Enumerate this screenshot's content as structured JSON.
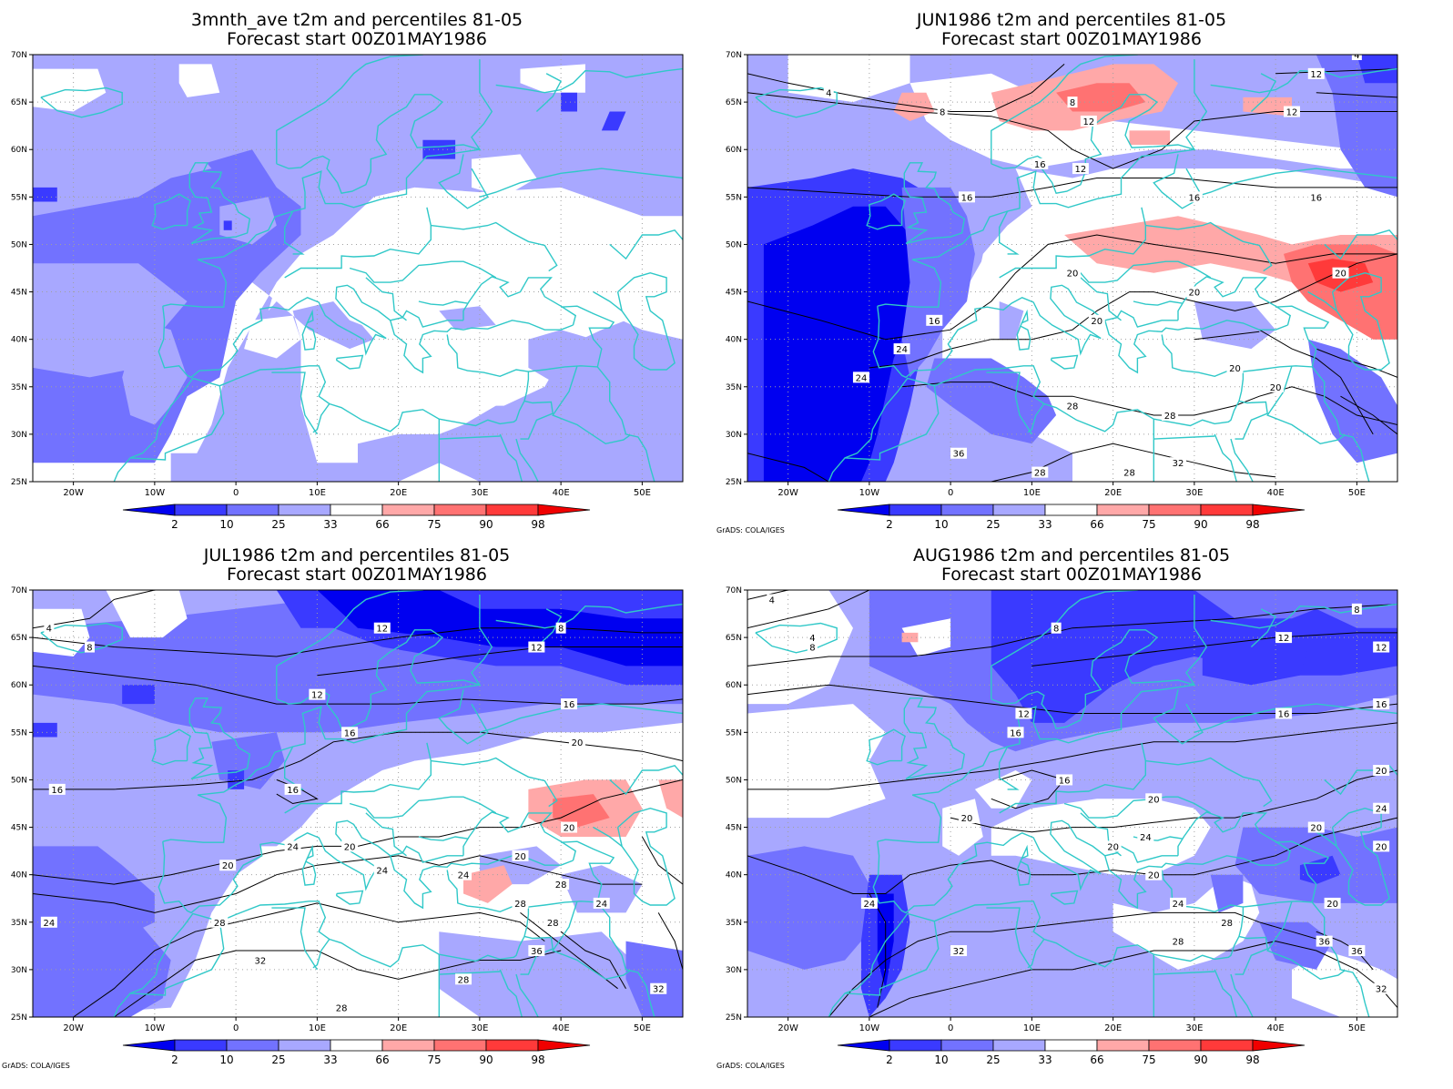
{
  "colors": {
    "blue_2": "#0000f0",
    "blue_10": "#3a3aff",
    "blue_25": "#7272ff",
    "blue_33": "#a8a8ff",
    "white": "#ffffff",
    "red_66": "#ffa8a8",
    "red_75": "#ff7272",
    "red_90": "#ff3a3a",
    "red_98": "#f00000",
    "coast": "#30c8c8",
    "contour": "#000000"
  },
  "colorbar": {
    "labels": [
      "2",
      "10",
      "25",
      "33",
      "66",
      "75",
      "90",
      "98"
    ]
  },
  "axes": {
    "x_ticks": [
      "20W",
      "10W",
      "0",
      "10E",
      "20E",
      "30E",
      "40E",
      "50E"
    ],
    "y_ticks": [
      "70N",
      "65N",
      "60N",
      "55N",
      "50N",
      "45N",
      "40N",
      "35N",
      "30N",
      "25N"
    ]
  },
  "credit": "GrADS: COLA/IGES",
  "panels": [
    {
      "title1": "3mnth_ave t2m and percentiles 81-05",
      "title2": "Forecast start 00Z01MAY1986",
      "credit": "",
      "contour_labels": []
    },
    {
      "title1": "JUN1986 t2m and percentiles 81-05",
      "title2": "Forecast start 00Z01MAY1986",
      "credit": "GrADS: COLA/IGES",
      "contour_labels": [
        "4",
        "4",
        "8",
        "8",
        "12",
        "12",
        "12",
        "12",
        "16",
        "16",
        "16",
        "16",
        "16",
        "20",
        "20",
        "20",
        "20",
        "20",
        "24",
        "24",
        "28",
        "28",
        "32",
        "36",
        "28",
        "28",
        "20"
      ]
    },
    {
      "title1": "JUL1986 t2m and percentiles 81-05",
      "title2": "Forecast start 00Z01MAY1986",
      "credit": "GrADS: COLA/IGES",
      "contour_labels": [
        "4",
        "8",
        "8",
        "12",
        "12",
        "12",
        "16",
        "16",
        "16",
        "16",
        "20",
        "20",
        "20",
        "20",
        "20",
        "24",
        "24",
        "24",
        "24",
        "28",
        "28",
        "28",
        "28",
        "32",
        "32",
        "36",
        "24",
        "28",
        "28"
      ]
    },
    {
      "title1": "AUG1986 t2m and percentiles 81-05",
      "title2": "Forecast start 00Z01MAY1986",
      "credit": "GrADS: COLA/IGES",
      "contour_labels": [
        "4",
        "4",
        "8",
        "8",
        "8",
        "12",
        "12",
        "12",
        "16",
        "16",
        "16",
        "16",
        "20",
        "20",
        "20",
        "20",
        "20",
        "20",
        "24",
        "24",
        "24",
        "24",
        "28",
        "28",
        "32",
        "32",
        "36",
        "36",
        "20",
        "20"
      ]
    }
  ]
}
